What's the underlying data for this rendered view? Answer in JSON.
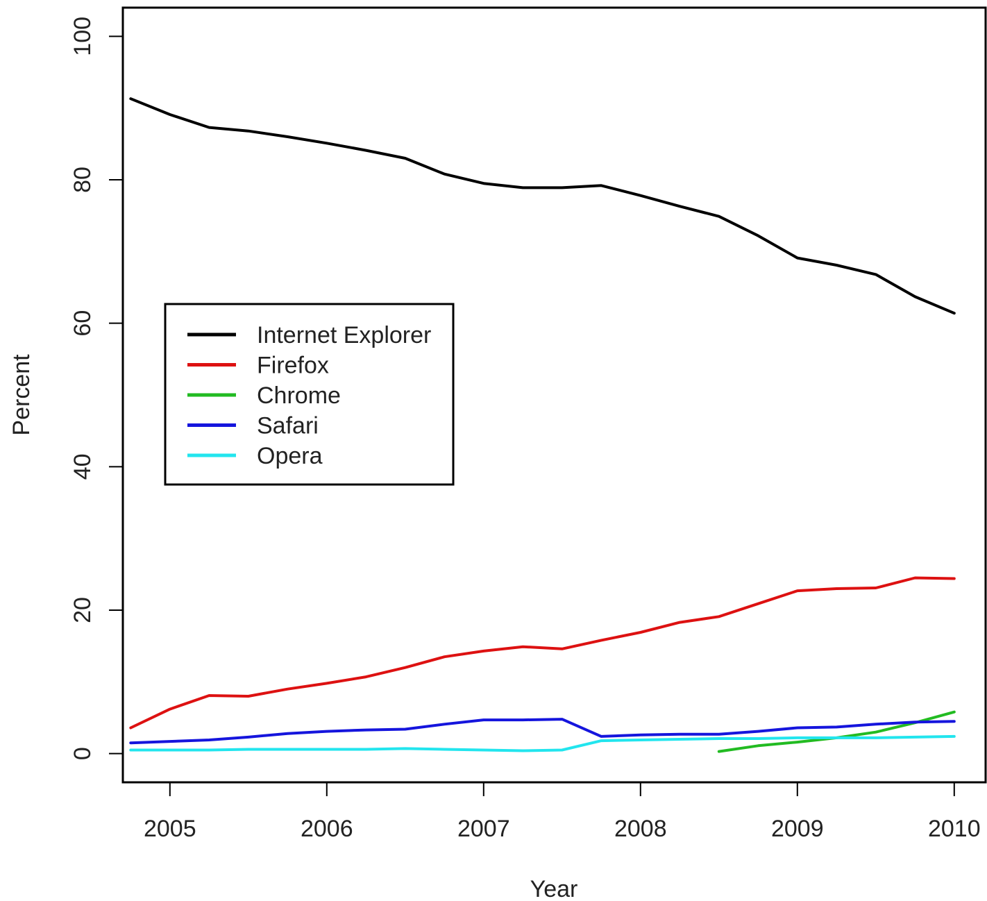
{
  "chart_data": {
    "type": "line",
    "title": "",
    "xlabel": "Year",
    "ylabel": "Percent",
    "xlim": [
      2004.7,
      2010.2
    ],
    "ylim": [
      -4,
      104
    ],
    "x_ticks": [
      2005,
      2006,
      2007,
      2008,
      2009,
      2010
    ],
    "x_tick_labels": [
      "2005",
      "2006",
      "2007",
      "2008",
      "2009",
      "2010"
    ],
    "y_ticks": [
      0,
      20,
      40,
      60,
      80,
      100
    ],
    "y_tick_labels": [
      "0",
      "20",
      "40",
      "60",
      "80",
      "100"
    ],
    "grid": false,
    "legend": {
      "position": "middle-left",
      "boxed": true
    },
    "series": [
      {
        "name": "Internet Explorer",
        "color": "#000000",
        "x": [
          2004.75,
          2005.0,
          2005.25,
          2005.5,
          2005.75,
          2006.0,
          2006.25,
          2006.5,
          2006.75,
          2007.0,
          2007.25,
          2007.5,
          2007.75,
          2008.0,
          2008.25,
          2008.5,
          2008.75,
          2009.0,
          2009.25,
          2009.5,
          2009.75,
          2010.0
        ],
        "y": [
          91.3,
          89.1,
          87.3,
          86.8,
          86.0,
          85.1,
          84.1,
          83.0,
          80.8,
          79.5,
          78.9,
          78.9,
          79.2,
          77.8,
          76.3,
          74.9,
          72.2,
          69.1,
          68.1,
          66.8,
          63.7,
          61.4
        ]
      },
      {
        "name": "Firefox",
        "color": "#dd1111",
        "x": [
          2004.75,
          2005.0,
          2005.25,
          2005.5,
          2005.75,
          2006.0,
          2006.25,
          2006.5,
          2006.75,
          2007.0,
          2007.25,
          2007.5,
          2007.75,
          2008.0,
          2008.25,
          2008.5,
          2008.75,
          2009.0,
          2009.25,
          2009.5,
          2009.75,
          2010.0
        ],
        "y": [
          3.6,
          6.2,
          8.1,
          8.0,
          9.0,
          9.8,
          10.7,
          12.0,
          13.5,
          14.3,
          14.9,
          14.6,
          15.8,
          16.9,
          18.3,
          19.1,
          20.9,
          22.7,
          23.0,
          23.1,
          24.5,
          24.4
        ]
      },
      {
        "name": "Chrome",
        "color": "#22bb22",
        "x": [
          2008.5,
          2008.75,
          2009.0,
          2009.25,
          2009.5,
          2009.75,
          2010.0
        ],
        "y": [
          0.3,
          1.1,
          1.6,
          2.2,
          3.0,
          4.3,
          5.8
        ]
      },
      {
        "name": "Safari",
        "color": "#1515dd",
        "x": [
          2004.75,
          2005.0,
          2005.25,
          2005.5,
          2005.75,
          2006.0,
          2006.25,
          2006.5,
          2006.75,
          2007.0,
          2007.25,
          2007.5,
          2007.75,
          2008.0,
          2008.25,
          2008.5,
          2008.75,
          2009.0,
          2009.25,
          2009.5,
          2009.75,
          2010.0
        ],
        "y": [
          1.5,
          1.7,
          1.9,
          2.3,
          2.8,
          3.1,
          3.3,
          3.4,
          4.1,
          4.7,
          4.7,
          4.8,
          2.4,
          2.6,
          2.7,
          2.7,
          3.1,
          3.6,
          3.7,
          4.1,
          4.4,
          4.5
        ]
      },
      {
        "name": "Opera",
        "color": "#22e5ee",
        "x": [
          2004.75,
          2005.0,
          2005.25,
          2005.5,
          2005.75,
          2006.0,
          2006.25,
          2006.5,
          2006.75,
          2007.0,
          2007.25,
          2007.5,
          2007.75,
          2008.0,
          2008.25,
          2008.5,
          2008.75,
          2009.0,
          2009.25,
          2009.5,
          2009.75,
          2010.0
        ],
        "y": [
          0.5,
          0.5,
          0.5,
          0.6,
          0.6,
          0.6,
          0.6,
          0.7,
          0.6,
          0.5,
          0.4,
          0.5,
          1.8,
          1.9,
          2.0,
          2.1,
          2.1,
          2.2,
          2.2,
          2.2,
          2.3,
          2.4
        ]
      }
    ]
  }
}
